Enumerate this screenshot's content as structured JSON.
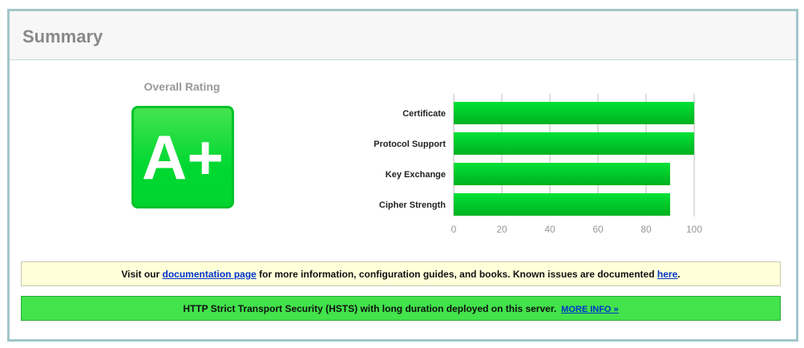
{
  "header": {
    "title": "Summary"
  },
  "rating": {
    "label": "Overall Rating",
    "grade": "A+",
    "color": "#00d831"
  },
  "chart_data": {
    "type": "bar",
    "orientation": "horizontal",
    "categories": [
      "Certificate",
      "Protocol Support",
      "Key Exchange",
      "Cipher Strength"
    ],
    "values": [
      100,
      100,
      90,
      90
    ],
    "xlim": [
      0,
      100
    ],
    "ticks": [
      "0",
      "20",
      "40",
      "60",
      "80",
      "100"
    ],
    "grid": true,
    "bar_color": "#00d52e"
  },
  "notices": {
    "doc": {
      "pre": "Visit our ",
      "link1": "documentation page",
      "mid": " for more information, configuration guides, and books. Known issues are documented ",
      "link2": "here",
      "post": "."
    },
    "hsts": {
      "text": "HTTP Strict Transport Security (HSTS) with long duration deployed on this server.",
      "link": "MORE INFO »"
    }
  }
}
